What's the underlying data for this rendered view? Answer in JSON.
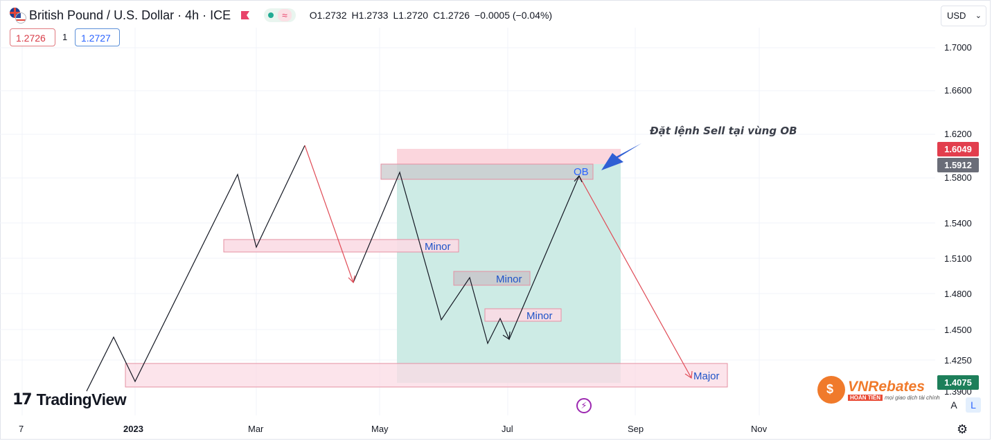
{
  "header": {
    "symbol": "British Pound / U.S. Dollar · 4h · ICE",
    "ohlc": {
      "o": "O1.2732",
      "h": "H1.2733",
      "l": "L1.2720",
      "c": "C1.2726",
      "change": "−0.0005 (−0.04%)"
    },
    "sell_price": "1.2726",
    "spread": "1",
    "buy_price": "1.2727",
    "wave_icon": "≈"
  },
  "currency": {
    "label": "USD",
    "icon": "chevron-down-icon"
  },
  "price_axis": {
    "ticks": [
      "1.7000",
      "1.6600",
      "1.6200",
      "1.5800",
      "1.5400",
      "1.5100",
      "1.4800",
      "1.4500",
      "1.4250"
    ],
    "tags": [
      {
        "label": "1.6049",
        "color": "#e23e4d"
      },
      {
        "label": "1.5912",
        "color": "#6a6d78"
      },
      {
        "label": "1.4075",
        "color": "#1d7f5a"
      }
    ]
  },
  "time_axis": {
    "ticks": [
      "7",
      "2023",
      "Mar",
      "May",
      "Jul",
      "Sep",
      "Nov"
    ]
  },
  "annotations": {
    "callout": "Đặt lệnh Sell tại vùng OB",
    "ob": "OB",
    "minor": "Minor",
    "major": "Major"
  },
  "branding": {
    "tradingview": "TradingView",
    "vnrebates": "VNRebates",
    "vn_tag_red": "HOÀN TIỀN",
    "vn_tag": "mọi giao dịch tài chính"
  },
  "controls": {
    "auto": "A",
    "log": "L"
  },
  "colors": {
    "accent_blue": "#2962ff",
    "zone_pink": "#f8c6d4",
    "zone_green": "#b2e2d8",
    "path_red": "#e04a55"
  }
}
